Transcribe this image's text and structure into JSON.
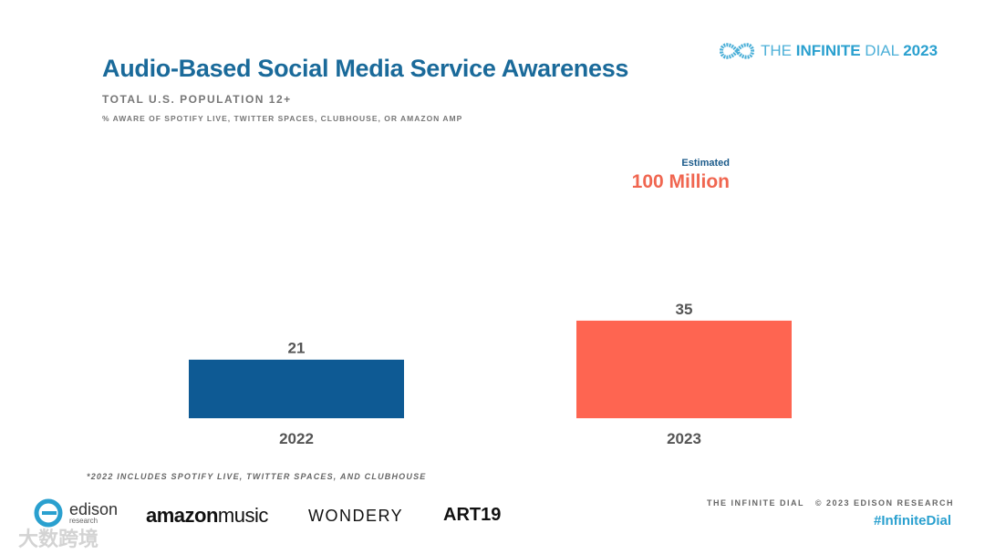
{
  "header": {
    "title": "Audio-Based Social Media Service Awareness",
    "subtitle": "TOTAL U.S. POPULATION 12+",
    "note": "% AWARE OF SPOTIFY LIVE, TWITTER SPACES, CLUBHOUSE, OR AMAZON AMP"
  },
  "brand": {
    "prefix": "THE ",
    "strong": "INFINITE",
    "suffix": " DIAL",
    "year": "2023"
  },
  "callout": {
    "label": "Estimated",
    "value": "100 Million"
  },
  "chart_data": {
    "type": "bar",
    "categories": [
      "2022",
      "2023"
    ],
    "values": [
      21,
      35
    ],
    "colors": [
      "#0e5a94",
      "#fe6551"
    ],
    "ylim": [
      0,
      100
    ],
    "title": "Audio-Based Social Media Service Awareness",
    "xlabel": "",
    "ylabel": ""
  },
  "footer": {
    "footnote": "*2022 INCLUDES SPOTIFY LIVE, TWITTER SPACES, AND CLUBHOUSE",
    "copyright": "THE INFINITE DIAL   © 2023 EDISON RESEARCH",
    "hashtag": "#InfiniteDial"
  },
  "logos": {
    "edison": "edison",
    "edison_sub": "research",
    "amazon_a": "amazon",
    "amazon_b": "music",
    "wondery": "WONDERY",
    "art19": "ART19"
  },
  "watermark": "大数跨境"
}
